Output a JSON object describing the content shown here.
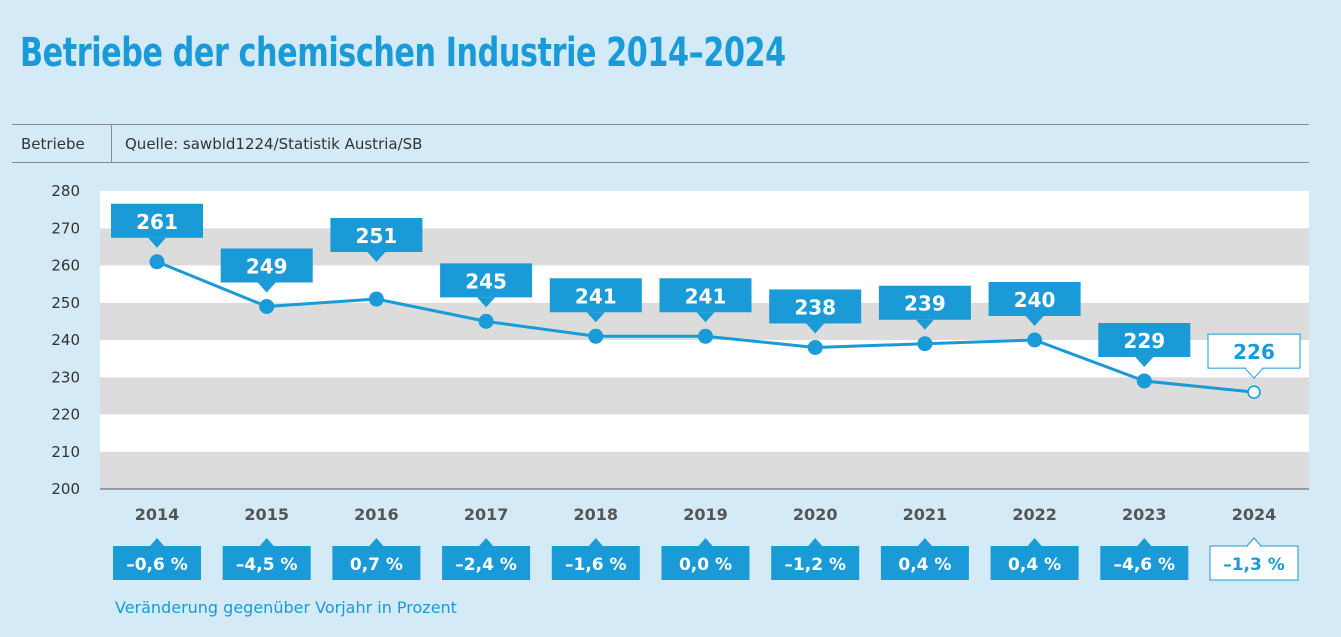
{
  "title": "Betriebe der chemischen Industrie 2014–2024",
  "unit_label": "Betriebe",
  "source": "Quelle: sawbld1224/Statistik Austria/SB",
  "note": "Veränderung gegenüber Vorjahr in Prozent",
  "colors": {
    "accent": "#1a9ad6",
    "label_bg": "#1a9ad6",
    "band_grey": "#dcdcdc",
    "band_white": "#ffffff",
    "background": "#d4eaf6"
  },
  "chart_data": {
    "type": "line",
    "x": [
      "2014",
      "2015",
      "2016",
      "2017",
      "2018",
      "2019",
      "2020",
      "2021",
      "2022",
      "2023",
      "2024"
    ],
    "values": [
      261,
      249,
      251,
      245,
      241,
      241,
      238,
      239,
      240,
      229,
      226
    ],
    "value_labels": [
      "261",
      "249",
      "251",
      "245",
      "241",
      "241",
      "238",
      "239",
      "240",
      "229",
      "226"
    ],
    "ylim": [
      200,
      280
    ],
    "yticks": [
      "200",
      "210",
      "220",
      "230",
      "240",
      "250",
      "260",
      "270",
      "280"
    ],
    "label_position": [
      "above",
      "above",
      "below",
      "above",
      "above",
      "above",
      "above",
      "above",
      "above",
      "above",
      "above"
    ],
    "highlight_last": true,
    "changes": [
      "–0,6 %",
      "–4,5 %",
      "0,7 %",
      "–2,4 %",
      "–1,6 %",
      "0,0 %",
      "–1,2 %",
      "0,4 %",
      "0,4 %",
      "–4,6 %",
      "–1,3 %"
    ],
    "grid": "alternating bands"
  }
}
